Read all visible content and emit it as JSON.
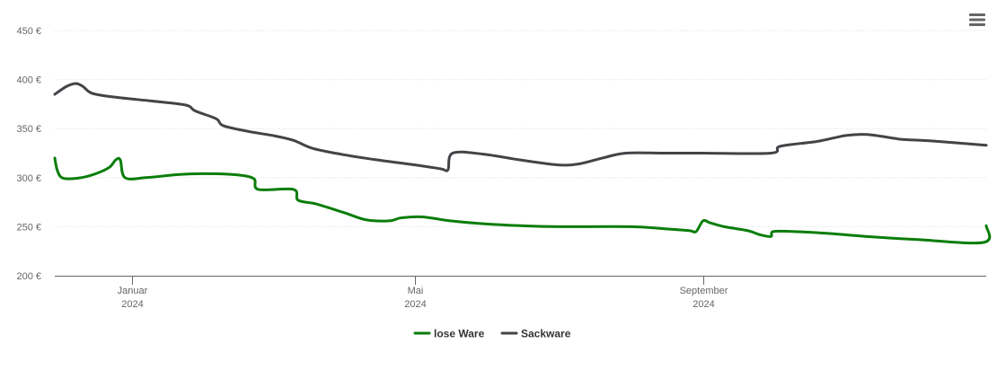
{
  "chart_data": {
    "type": "line",
    "y_unit_suffix": " €",
    "yticks": [
      200,
      250,
      300,
      350,
      400,
      450
    ],
    "ylim": [
      200,
      450
    ],
    "xlim": [
      "2023-11-29",
      "2024-12-31"
    ],
    "xticks": [
      {
        "date": "2024-01-01",
        "label1": "Januar",
        "label2": "2024"
      },
      {
        "date": "2024-05-01",
        "label1": "Mai",
        "label2": "2024"
      },
      {
        "date": "2024-09-01",
        "label1": "September",
        "label2": "2024"
      }
    ],
    "grid": true,
    "legend_position": "bottom-center",
    "series": [
      {
        "name": "lose Ware",
        "color": "#0a7d0a",
        "points": [
          [
            "2023-11-29",
            320
          ],
          [
            "2023-11-30",
            308
          ],
          [
            "2023-12-02",
            300
          ],
          [
            "2023-12-07",
            299
          ],
          [
            "2023-12-14",
            302
          ],
          [
            "2023-12-22",
            310
          ],
          [
            "2023-12-25",
            318
          ],
          [
            "2023-12-27",
            318
          ],
          [
            "2023-12-29",
            300
          ],
          [
            "2024-01-07",
            300
          ],
          [
            "2024-01-20",
            303
          ],
          [
            "2024-02-01",
            304
          ],
          [
            "2024-02-14",
            303
          ],
          [
            "2024-02-22",
            299
          ],
          [
            "2024-02-24",
            288
          ],
          [
            "2024-03-10",
            288
          ],
          [
            "2024-03-12",
            277
          ],
          [
            "2024-03-20",
            273
          ],
          [
            "2024-04-01",
            264
          ],
          [
            "2024-04-10",
            257
          ],
          [
            "2024-04-20",
            256
          ],
          [
            "2024-04-25",
            259
          ],
          [
            "2024-05-04",
            260
          ],
          [
            "2024-05-16",
            256
          ],
          [
            "2024-05-30",
            253
          ],
          [
            "2024-06-15",
            251
          ],
          [
            "2024-07-01",
            250
          ],
          [
            "2024-08-01",
            250
          ],
          [
            "2024-08-15",
            248
          ],
          [
            "2024-08-26",
            246
          ],
          [
            "2024-08-29",
            245
          ],
          [
            "2024-09-01",
            256
          ],
          [
            "2024-09-04",
            254
          ],
          [
            "2024-09-10",
            250
          ],
          [
            "2024-09-20",
            246
          ],
          [
            "2024-09-25",
            242
          ],
          [
            "2024-09-30",
            240
          ],
          [
            "2024-10-01",
            245
          ],
          [
            "2024-10-10",
            245
          ],
          [
            "2024-10-25",
            243
          ],
          [
            "2024-11-10",
            240
          ],
          [
            "2024-12-01",
            237
          ],
          [
            "2024-12-30",
            234
          ],
          [
            "2024-12-31",
            251
          ]
        ]
      },
      {
        "name": "Sackware",
        "color": "#434348",
        "points": [
          [
            "2023-11-29",
            385
          ],
          [
            "2023-12-04",
            393
          ],
          [
            "2023-12-08",
            396
          ],
          [
            "2023-12-11",
            393
          ],
          [
            "2023-12-15",
            386
          ],
          [
            "2023-12-25",
            382
          ],
          [
            "2024-01-10",
            378
          ],
          [
            "2024-01-24",
            374
          ],
          [
            "2024-01-28",
            368
          ],
          [
            "2024-02-06",
            360
          ],
          [
            "2024-02-09",
            353
          ],
          [
            "2024-02-20",
            347
          ],
          [
            "2024-03-01",
            343
          ],
          [
            "2024-03-10",
            338
          ],
          [
            "2024-03-18",
            330
          ],
          [
            "2024-03-30",
            324
          ],
          [
            "2024-04-15",
            318
          ],
          [
            "2024-05-01",
            313
          ],
          [
            "2024-05-12",
            309
          ],
          [
            "2024-05-15",
            308
          ],
          [
            "2024-05-17",
            325
          ],
          [
            "2024-05-30",
            324
          ],
          [
            "2024-06-15",
            318
          ],
          [
            "2024-07-01",
            313
          ],
          [
            "2024-07-10",
            314
          ],
          [
            "2024-07-20",
            320
          ],
          [
            "2024-07-30",
            325
          ],
          [
            "2024-08-15",
            325
          ],
          [
            "2024-09-01",
            325
          ],
          [
            "2024-09-30",
            325
          ],
          [
            "2024-10-04",
            332
          ],
          [
            "2024-10-20",
            337
          ],
          [
            "2024-11-01",
            343
          ],
          [
            "2024-11-10",
            344
          ],
          [
            "2024-11-22",
            340
          ],
          [
            "2024-11-25",
            339
          ],
          [
            "2024-12-10",
            337
          ],
          [
            "2024-12-31",
            333
          ]
        ]
      }
    ]
  },
  "labels": {
    "menu_icon": "hamburger-menu-icon"
  }
}
